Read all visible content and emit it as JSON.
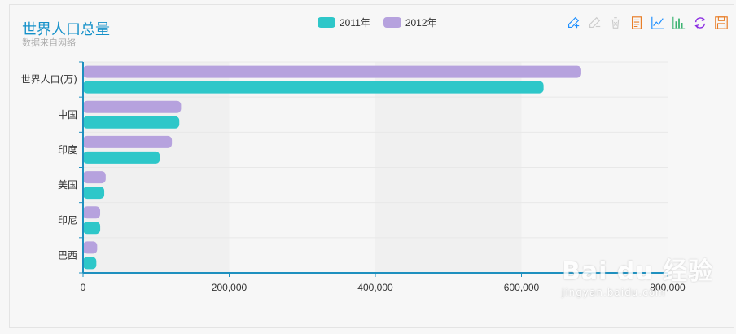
{
  "chart_data": {
    "type": "bar",
    "orientation": "horizontal",
    "title": "世界人口总量",
    "subtitle": "数据来自网络",
    "categories": [
      "世界人口(万)",
      "中国",
      "印度",
      "美国",
      "印尼",
      "巴西"
    ],
    "series": [
      {
        "name": "2011年",
        "color": "#2ec7c9",
        "values": [
          630230,
          131744,
          104970,
          29034,
          23489,
          18203
        ]
      },
      {
        "name": "2012年",
        "color": "#b6a2de",
        "values": [
          681807,
          134141,
          121594,
          31000,
          23438,
          19325
        ]
      }
    ],
    "xlim": [
      0,
      800000
    ],
    "x_ticks": [
      "0",
      "200,000",
      "400,000",
      "600,000",
      "800,000"
    ],
    "x_tick_values": [
      0,
      200000,
      400000,
      600000,
      800000
    ],
    "legend_position": "top-center",
    "grid": true
  },
  "watermark": {
    "main": "Bai du 经验",
    "sub": "jingyan.baidu.com"
  },
  "toolbox": [
    {
      "icon": "data-zoom-icon",
      "color": "#1e90ff"
    },
    {
      "icon": "data-zoom-reset-icon",
      "color": "#cccccc"
    },
    {
      "icon": "mark-clear-icon",
      "color": "#cccccc"
    },
    {
      "icon": "data-view-icon",
      "color": "#e87c25"
    },
    {
      "icon": "line-chart-icon",
      "color": "#1e90ff"
    },
    {
      "icon": "bar-chart-icon",
      "color": "#3cb371"
    },
    {
      "icon": "restore-icon",
      "color": "#8a2be2"
    },
    {
      "icon": "save-image-icon",
      "color": "#e87c25"
    }
  ]
}
